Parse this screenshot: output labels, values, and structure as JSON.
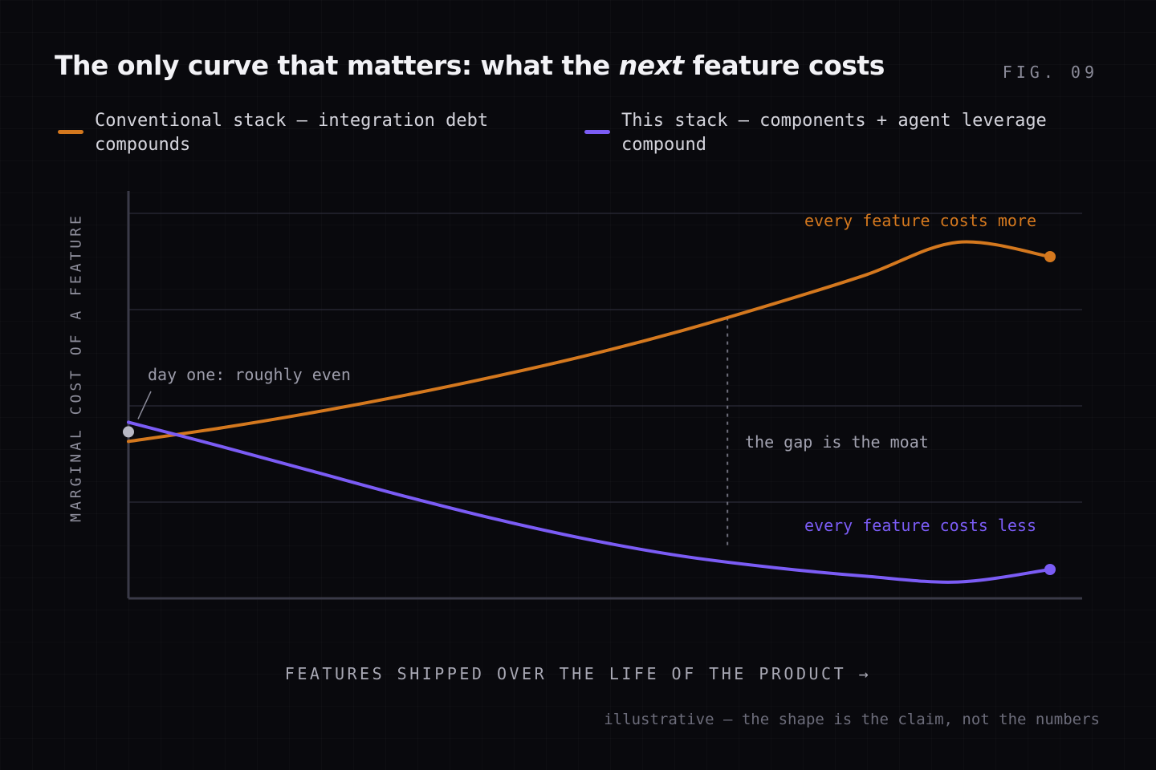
{
  "title": {
    "before": "The only curve that matters: what the ",
    "emphasis": "next",
    "after": " feature costs"
  },
  "figure_label": "FIG. 09",
  "footnote": "illustrative — the shape is the claim, not the numbers",
  "colors": {
    "background": "#09090d",
    "conventional": "#d4781e",
    "this_stack": "#7b5cf5",
    "start_point": "#b8b8c4"
  },
  "chart_data": {
    "type": "line",
    "xlabel": "FEATURES SHIPPED OVER THE LIFE OF THE PRODUCT →",
    "ylabel": "MARGINAL COST OF A FEATURE",
    "xlim": [
      0,
      1
    ],
    "ylim": [
      0,
      4
    ],
    "grid": true,
    "legend_position": "top",
    "series": [
      {
        "name": "Conventional stack — integration debt compounds",
        "color": "#d4781e",
        "x": [
          0,
          0.1,
          0.2,
          0.3,
          0.4,
          0.5,
          0.6,
          0.7,
          0.8,
          0.9,
          1.0
        ],
        "y": [
          1.63,
          1.77,
          1.93,
          2.11,
          2.31,
          2.53,
          2.78,
          3.06,
          3.36,
          3.7,
          3.55
        ],
        "end_marker": true
      },
      {
        "name": "This stack — components + agent leverage compound",
        "color": "#7b5cf5",
        "x": [
          0,
          0.1,
          0.2,
          0.3,
          0.4,
          0.5,
          0.6,
          0.7,
          0.8,
          0.9,
          1.0
        ],
        "y": [
          1.83,
          1.58,
          1.32,
          1.06,
          0.82,
          0.61,
          0.44,
          0.32,
          0.23,
          0.17,
          0.3
        ],
        "end_marker": true
      }
    ],
    "annotations": {
      "start": "day one: roughly even",
      "gap": "the gap is the moat",
      "top_curve": "every feature costs more",
      "bottom_curve": "every feature costs less"
    }
  }
}
